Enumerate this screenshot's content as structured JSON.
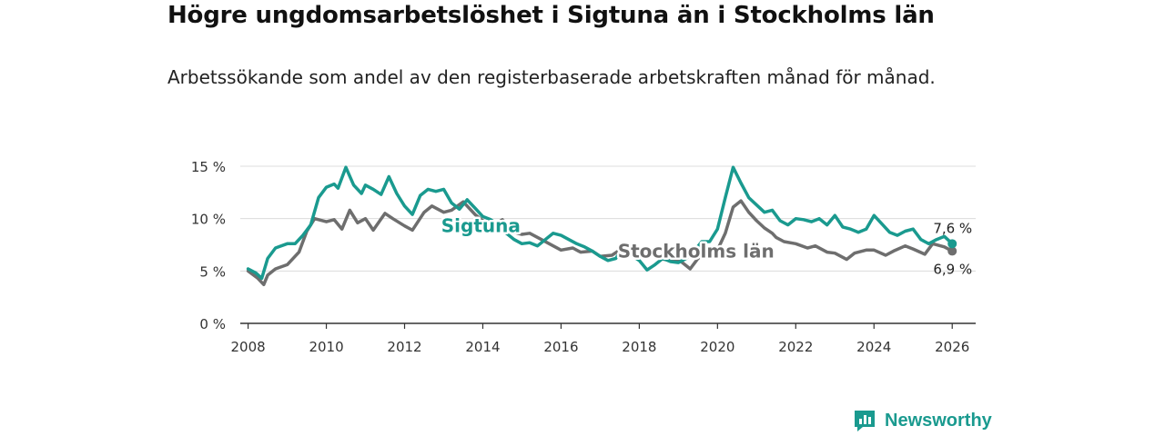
{
  "title": "Högre ungdomsarbetslöshet i Sigtuna än i Stockholms län",
  "subtitle": "Arbetssökande som andel av den registerbaserade arbetskraften månad för månad.",
  "brand": {
    "name": "Newsworthy",
    "color": "#1a9a8f"
  },
  "chart_data": {
    "type": "line",
    "title": "Högre ungdomsarbetslöshet i Sigtuna än i Stockholms län",
    "xlabel": "",
    "ylabel": "",
    "xlim": [
      2007.8,
      2026.6
    ],
    "ylim": [
      0,
      15
    ],
    "x_ticks": [
      2008,
      2010,
      2012,
      2014,
      2016,
      2018,
      2020,
      2022,
      2024,
      2026
    ],
    "x_tick_labels": [
      "2008",
      "2010",
      "2012",
      "2014",
      "2016",
      "2018",
      "2020",
      "2022",
      "2024",
      "2026"
    ],
    "y_ticks": [
      0,
      5,
      10,
      15
    ],
    "y_tick_labels": [
      "0 %",
      "5 %",
      "10 %",
      "15 %"
    ],
    "grid": true,
    "series": [
      {
        "name": "Stockholms län",
        "label": "Stockholms län",
        "color": "#6e6e6e",
        "end_label": "6,9 %",
        "x": [
          2008.0,
          2008.25,
          2008.4,
          2008.5,
          2008.7,
          2009.0,
          2009.3,
          2009.5,
          2009.7,
          2010.0,
          2010.2,
          2010.4,
          2010.6,
          2010.8,
          2011.0,
          2011.2,
          2011.5,
          2011.7,
          2012.0,
          2012.2,
          2012.5,
          2012.7,
          2013.0,
          2013.2,
          2013.5,
          2013.8,
          2014.0,
          2014.3,
          2014.5,
          2014.8,
          2015.0,
          2015.2,
          2015.5,
          2015.8,
          2016.0,
          2016.3,
          2016.5,
          2016.8,
          2017.0,
          2017.3,
          2017.5,
          2017.8,
          2018.0,
          2018.3,
          2018.5,
          2018.8,
          2019.0,
          2019.3,
          2019.5,
          2019.8,
          2020.0,
          2020.2,
          2020.4,
          2020.6,
          2020.8,
          2021.0,
          2021.2,
          2021.4,
          2021.5,
          2021.7,
          2022.0,
          2022.3,
          2022.5,
          2022.8,
          2023.0,
          2023.3,
          2023.5,
          2023.8,
          2024.0,
          2024.3,
          2024.5,
          2024.8,
          2025.0,
          2025.3,
          2025.5,
          2025.8,
          2026.0
        ],
        "values": [
          5.0,
          4.3,
          3.7,
          4.6,
          5.2,
          5.6,
          6.8,
          8.8,
          10.0,
          9.7,
          9.9,
          9.0,
          10.8,
          9.6,
          10.0,
          8.9,
          10.5,
          10.0,
          9.3,
          8.9,
          10.6,
          11.2,
          10.6,
          10.8,
          11.6,
          10.4,
          9.8,
          9.4,
          9.9,
          8.7,
          8.5,
          8.6,
          8.0,
          7.4,
          7.0,
          7.2,
          6.8,
          6.9,
          6.4,
          6.5,
          7.0,
          6.8,
          6.5,
          6.9,
          6.2,
          6.0,
          6.1,
          5.2,
          6.2,
          6.9,
          7.0,
          8.6,
          11.1,
          11.7,
          10.6,
          9.8,
          9.1,
          8.6,
          8.2,
          7.8,
          7.6,
          7.2,
          7.4,
          6.8,
          6.7,
          6.1,
          6.7,
          7.0,
          7.0,
          6.5,
          6.9,
          7.4,
          7.1,
          6.6,
          7.6,
          7.3,
          6.9
        ]
      },
      {
        "name": "Sigtuna",
        "label": "Sigtuna",
        "color": "#1a9a8f",
        "end_label": "7,6 %",
        "x": [
          2008.0,
          2008.2,
          2008.35,
          2008.5,
          2008.7,
          2009.0,
          2009.2,
          2009.4,
          2009.6,
          2009.8,
          2010.0,
          2010.2,
          2010.3,
          2010.5,
          2010.7,
          2010.9,
          2011.0,
          2011.2,
          2011.4,
          2011.6,
          2011.8,
          2012.0,
          2012.2,
          2012.4,
          2012.6,
          2012.8,
          2013.0,
          2013.2,
          2013.4,
          2013.6,
          2013.8,
          2014.0,
          2014.2,
          2014.4,
          2014.6,
          2014.8,
          2015.0,
          2015.2,
          2015.4,
          2015.6,
          2015.8,
          2016.0,
          2016.2,
          2016.4,
          2016.6,
          2016.8,
          2017.0,
          2017.2,
          2017.4,
          2017.6,
          2017.8,
          2018.0,
          2018.2,
          2018.4,
          2018.6,
          2018.8,
          2019.0,
          2019.2,
          2019.4,
          2019.6,
          2019.8,
          2020.0,
          2020.2,
          2020.4,
          2020.6,
          2020.8,
          2021.0,
          2021.2,
          2021.4,
          2021.6,
          2021.8,
          2022.0,
          2022.2,
          2022.4,
          2022.6,
          2022.8,
          2023.0,
          2023.2,
          2023.4,
          2023.6,
          2023.8,
          2024.0,
          2024.2,
          2024.4,
          2024.6,
          2024.8,
          2025.0,
          2025.2,
          2025.4,
          2025.6,
          2025.8,
          2026.0
        ],
        "values": [
          5.2,
          4.8,
          4.3,
          6.2,
          7.2,
          7.6,
          7.6,
          8.4,
          9.4,
          12.0,
          13.0,
          13.3,
          12.9,
          14.9,
          13.2,
          12.4,
          13.2,
          12.8,
          12.3,
          14.0,
          12.4,
          11.2,
          10.4,
          12.2,
          12.8,
          12.6,
          12.8,
          11.5,
          10.9,
          11.8,
          11.0,
          10.2,
          9.9,
          9.4,
          8.6,
          8.0,
          7.6,
          7.7,
          7.4,
          8.0,
          8.6,
          8.4,
          8.0,
          7.6,
          7.3,
          6.9,
          6.4,
          6.0,
          6.2,
          7.3,
          6.5,
          6.0,
          5.1,
          5.6,
          6.2,
          5.9,
          5.8,
          6.2,
          6.9,
          7.8,
          7.8,
          9.0,
          12.0,
          14.9,
          13.4,
          12.0,
          11.3,
          10.6,
          10.8,
          9.8,
          9.4,
          10.0,
          9.9,
          9.7,
          10.0,
          9.4,
          10.3,
          9.2,
          9.0,
          8.7,
          9.0,
          10.3,
          9.5,
          8.7,
          8.4,
          8.8,
          9.0,
          8.0,
          7.6,
          8.0,
          8.3,
          7.6
        ]
      }
    ]
  }
}
